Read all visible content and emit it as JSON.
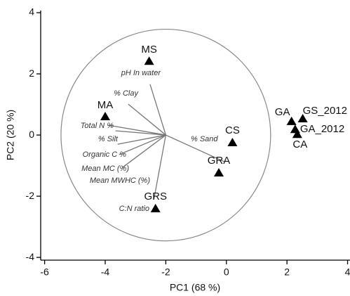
{
  "chart_data": {
    "type": "scatter",
    "x_label": "PC1 (68 %)",
    "y_label": "PC2 (20 %)",
    "xlim": [
      -6.13,
      4.08
    ],
    "ylim": [
      -4.09,
      4.07
    ],
    "xticks": [
      -6,
      -4,
      -2,
      0,
      2,
      4
    ],
    "yticks": [
      -4,
      -2,
      0,
      2,
      4
    ],
    "color": "#000000",
    "points": [
      {
        "label": "MS",
        "x": -2.55,
        "y": 2.41
      },
      {
        "label": "MA",
        "x": -4.0,
        "y": 0.6
      },
      {
        "label": "CS",
        "x": 0.2,
        "y": -0.25
      },
      {
        "label": "GRA",
        "x": -0.25,
        "y": -1.24
      },
      {
        "label": "GRS",
        "x": -2.34,
        "y": -2.41
      },
      {
        "label": "GA",
        "x": 2.15,
        "y": 0.44
      },
      {
        "label": "GS_2012",
        "x": 2.52,
        "y": 0.53
      },
      {
        "label": "GA_2012",
        "x": 2.27,
        "y": 0.18
      },
      {
        "label": "CA",
        "x": 2.34,
        "y": 0.02
      }
    ],
    "loading_origin": [
      -2,
      0
    ],
    "circle_radius": 3.46,
    "loadings": [
      {
        "label": "pH In water",
        "x": -2.52,
        "y": 1.66
      },
      {
        "label": "% Clay",
        "x": -3.24,
        "y": 1.01
      },
      {
        "label": "Total N %",
        "x": -3.89,
        "y": 0.32
      },
      {
        "label": "% Silt",
        "x": -3.66,
        "y": 0.14
      },
      {
        "label": "Organic C %",
        "x": -3.59,
        "y": -0.3
      },
      {
        "label": "Mean MC (%)",
        "x": -3.54,
        "y": -0.64
      },
      {
        "label": "Mean MWHC (%)",
        "x": -3.43,
        "y": -1.06
      },
      {
        "label": "C:N ratio",
        "x": -2.39,
        "y": -2.09
      },
      {
        "label": "% Sand",
        "x": -0.07,
        "y": -0.87
      }
    ]
  }
}
